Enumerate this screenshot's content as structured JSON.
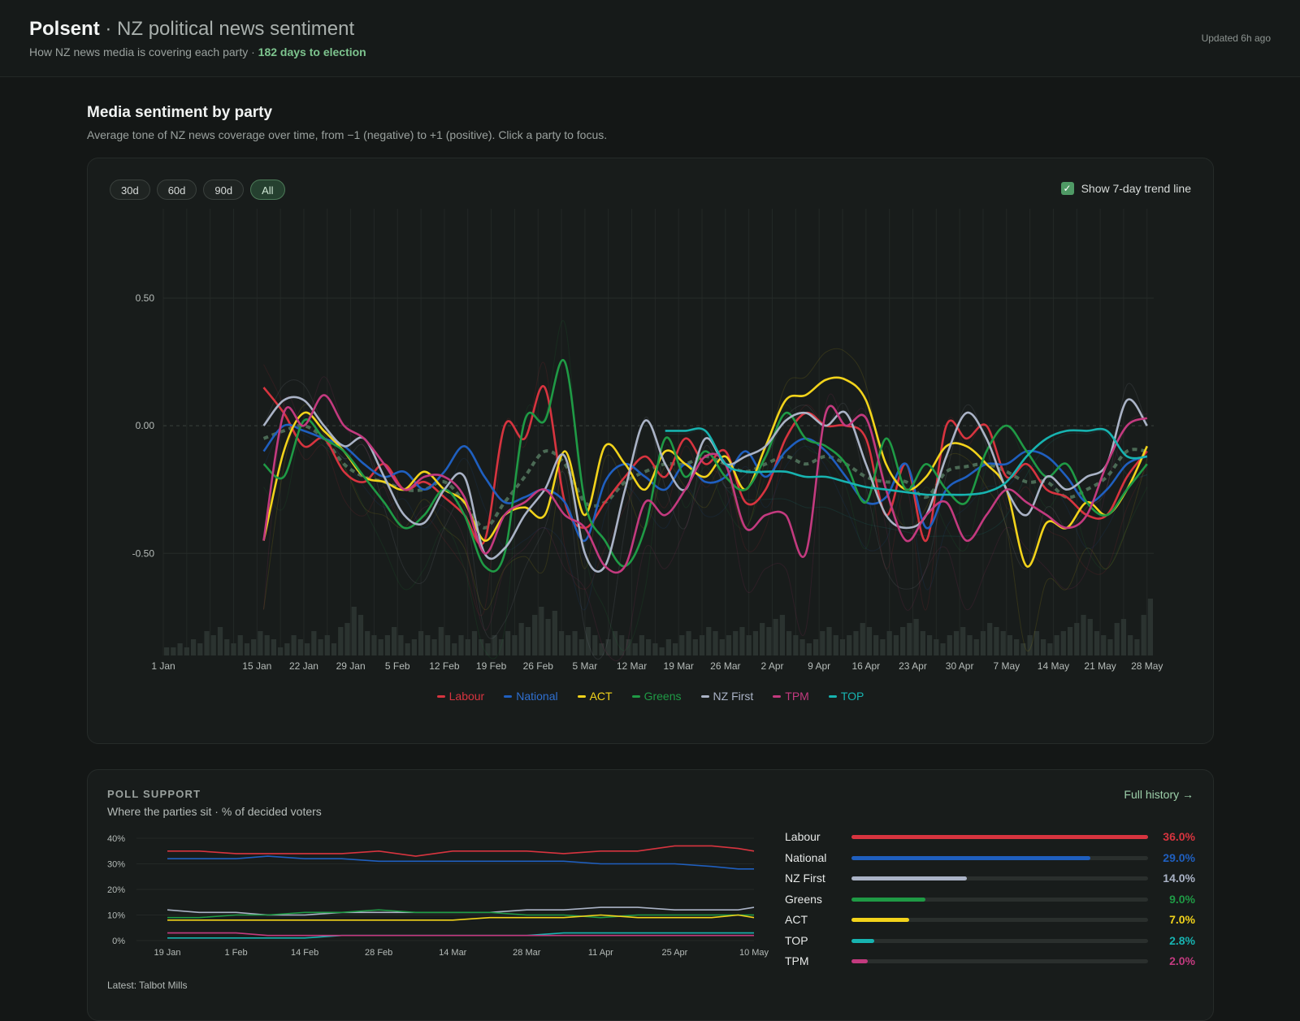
{
  "header": {
    "brand": "Polsent",
    "separator": "·",
    "subtitle": "NZ political news sentiment",
    "tagline": "How NZ news media is covering each party ·",
    "election_countdown": "182 days to election",
    "updated": "Updated 6h ago"
  },
  "sentiment_section": {
    "title": "Media sentiment by party",
    "description": "Average tone of NZ news coverage over time, from −1 (negative) to +1 (positive). Click a party to focus.",
    "range_buttons": [
      {
        "label": "30d",
        "active": false
      },
      {
        "label": "60d",
        "active": false
      },
      {
        "label": "90d",
        "active": false
      },
      {
        "label": "All",
        "active": true
      }
    ],
    "trend_toggle": {
      "label": "Show 7-day trend line",
      "checked": true
    }
  },
  "poll_section": {
    "title": "POLL SUPPORT",
    "subtitle": "Where the parties sit · % of decided voters",
    "link": "Full history →",
    "latest": "Latest: Talbot Mills",
    "support": [
      {
        "party": "Labour",
        "value": 36.0,
        "label": "36.0%",
        "color": "#d7343f"
      },
      {
        "party": "National",
        "value": 29.0,
        "label": "29.0%",
        "color": "#1f5fbf"
      },
      {
        "party": "NZ First",
        "value": 14.0,
        "label": "14.0%",
        "color": "#aab3c6"
      },
      {
        "party": "Greens",
        "value": 9.0,
        "label": "9.0%",
        "color": "#1f9a45"
      },
      {
        "party": "ACT",
        "value": 7.0,
        "label": "7.0%",
        "color": "#f2d31b"
      },
      {
        "party": "TOP",
        "value": 2.8,
        "label": "2.8%",
        "color": "#17b3b0"
      },
      {
        "party": "TPM",
        "value": 2.0,
        "label": "2.0%",
        "color": "#c33a7f"
      }
    ]
  },
  "chart_data": [
    {
      "type": "line",
      "title": "",
      "xlabel": "",
      "ylabel": "",
      "ylim": [
        -0.9,
        0.85
      ],
      "yticks": [
        0.5,
        0.0,
        -0.5
      ],
      "ytick_labels": [
        "0.50",
        "0.00",
        "-0.50"
      ],
      "x_ticks": [
        "1 Jan",
        "15 Jan",
        "22 Jan",
        "29 Jan",
        "5 Feb",
        "12 Feb",
        "19 Feb",
        "26 Feb",
        "5 Mar",
        "12 Mar",
        "19 Mar",
        "26 Mar",
        "2 Apr",
        "9 Apr",
        "16 Apr",
        "23 Apr",
        "30 Apr",
        "7 May",
        "14 May",
        "21 May",
        "28 May"
      ],
      "x_tick_days": [
        0,
        14,
        21,
        28,
        35,
        42,
        49,
        56,
        63,
        70,
        77,
        84,
        91,
        98,
        105,
        112,
        119,
        126,
        133,
        140,
        147
      ],
      "x": [
        15,
        18,
        21,
        24,
        27,
        30,
        33,
        36,
        39,
        42,
        45,
        48,
        51,
        54,
        57,
        60,
        63,
        66,
        69,
        72,
        75,
        78,
        81,
        84,
        87,
        90,
        93,
        96,
        99,
        102,
        105,
        108,
        111,
        114,
        117,
        120,
        123,
        126,
        129,
        132,
        135,
        138,
        141,
        144,
        147
      ],
      "grid": true,
      "legend": "bottom",
      "series": [
        {
          "name": "Labour",
          "color": "#d7343f",
          "values": [
            0.15,
            0.05,
            -0.08,
            -0.05,
            -0.18,
            -0.22,
            -0.15,
            -0.25,
            -0.22,
            -0.28,
            -0.35,
            -0.45,
            0.0,
            -0.05,
            0.15,
            -0.3,
            -0.4,
            -0.3,
            -0.2,
            -0.12,
            -0.2,
            -0.05,
            -0.15,
            -0.1,
            -0.3,
            -0.25,
            -0.05,
            0.05,
            0.0,
            0.0,
            -0.05,
            -0.35,
            -0.15,
            -0.45,
            0.0,
            -0.05,
            0.0,
            -0.2,
            -0.15,
            -0.25,
            -0.28,
            -0.35,
            -0.35,
            -0.2,
            -0.1
          ]
        },
        {
          "name": "National",
          "color": "#1f5fbf",
          "values": [
            -0.1,
            0.0,
            -0.02,
            -0.05,
            -0.08,
            -0.15,
            -0.2,
            -0.18,
            -0.25,
            -0.18,
            -0.08,
            -0.2,
            -0.3,
            -0.28,
            -0.25,
            -0.3,
            -0.45,
            -0.22,
            -0.15,
            -0.2,
            -0.25,
            -0.15,
            -0.22,
            -0.2,
            -0.1,
            -0.2,
            -0.1,
            -0.05,
            -0.1,
            -0.2,
            -0.3,
            -0.28,
            -0.15,
            -0.4,
            -0.25,
            -0.2,
            -0.15,
            -0.15,
            -0.1,
            -0.12,
            -0.2,
            -0.3,
            -0.25,
            -0.15,
            -0.12
          ]
        },
        {
          "name": "ACT",
          "color": "#f2d31b",
          "values": [
            -0.45,
            -0.1,
            0.05,
            -0.02,
            -0.1,
            -0.2,
            -0.22,
            -0.25,
            -0.18,
            -0.25,
            -0.3,
            -0.45,
            -0.35,
            -0.32,
            -0.35,
            -0.1,
            -0.35,
            -0.08,
            -0.15,
            -0.25,
            -0.1,
            -0.15,
            -0.2,
            -0.12,
            -0.25,
            -0.08,
            0.1,
            0.12,
            0.18,
            0.18,
            0.1,
            -0.15,
            -0.25,
            -0.2,
            -0.08,
            -0.08,
            -0.15,
            -0.25,
            -0.55,
            -0.38,
            -0.4,
            -0.3,
            -0.35,
            -0.25,
            -0.08
          ]
        },
        {
          "name": "Greens",
          "color": "#1f9a45",
          "values": [
            -0.15,
            -0.2,
            0.02,
            -0.05,
            -0.1,
            -0.2,
            -0.3,
            -0.4,
            -0.35,
            -0.25,
            -0.35,
            -0.55,
            -0.5,
            0.02,
            0.02,
            0.25,
            -0.3,
            -0.45,
            -0.55,
            -0.4,
            -0.05,
            -0.2,
            -0.1,
            -0.2,
            -0.25,
            -0.12,
            0.05,
            -0.05,
            -0.08,
            -0.15,
            -0.3,
            -0.05,
            -0.25,
            -0.15,
            -0.25,
            -0.3,
            -0.1,
            0.0,
            -0.1,
            -0.2,
            -0.15,
            -0.3,
            -0.35,
            -0.25,
            -0.15
          ]
        },
        {
          "name": "NZ First",
          "color": "#aab3c6",
          "values": [
            0.0,
            0.1,
            0.1,
            0.0,
            -0.08,
            -0.05,
            -0.2,
            -0.35,
            -0.38,
            -0.25,
            -0.2,
            -0.5,
            -0.48,
            -0.35,
            -0.25,
            -0.12,
            -0.5,
            -0.55,
            -0.25,
            0.02,
            -0.15,
            -0.25,
            -0.05,
            -0.15,
            -0.12,
            -0.08,
            0.02,
            0.05,
            0.0,
            0.05,
            -0.15,
            -0.35,
            -0.4,
            -0.35,
            -0.12,
            0.05,
            -0.05,
            -0.25,
            -0.35,
            -0.2,
            -0.25,
            -0.2,
            -0.15,
            0.1,
            0.0
          ]
        },
        {
          "name": "TPM",
          "color": "#c33a7f",
          "values": [
            -0.45,
            0.05,
            0.0,
            0.12,
            0.0,
            -0.05,
            -0.15,
            -0.25,
            -0.2,
            -0.2,
            -0.28,
            -0.5,
            -0.35,
            -0.3,
            -0.25,
            -0.35,
            -0.4,
            -0.55,
            -0.55,
            -0.3,
            -0.35,
            -0.25,
            -0.12,
            -0.15,
            -0.4,
            -0.35,
            -0.35,
            -0.5,
            0.05,
            0.0,
            0.03,
            -0.25,
            -0.45,
            -0.35,
            -0.3,
            -0.45,
            -0.35,
            -0.25,
            -0.3,
            -0.35,
            -0.4,
            -0.35,
            -0.15,
            0.0,
            0.03
          ]
        },
        {
          "name": "TOP",
          "color": "#17b3b0",
          "values": [
            null,
            null,
            null,
            null,
            null,
            null,
            null,
            null,
            null,
            null,
            null,
            null,
            null,
            null,
            null,
            null,
            null,
            null,
            null,
            null,
            -0.02,
            -0.02,
            -0.02,
            -0.15,
            -0.18,
            -0.18,
            -0.18,
            -0.2,
            -0.2,
            -0.22,
            -0.24,
            -0.25,
            -0.26,
            -0.27,
            -0.27,
            -0.27,
            -0.26,
            -0.22,
            -0.12,
            -0.05,
            -0.02,
            -0.02,
            -0.02,
            -0.12,
            -0.12
          ]
        }
      ],
      "trend_series": {
        "values": [
          -0.05,
          -0.02,
          0.0,
          -0.05,
          -0.15,
          -0.2,
          -0.22,
          -0.25,
          -0.25,
          -0.22,
          -0.3,
          -0.4,
          -0.3,
          -0.2,
          -0.1,
          -0.15,
          -0.3,
          -0.3,
          -0.22,
          -0.18,
          -0.15,
          -0.15,
          -0.12,
          -0.15,
          -0.18,
          -0.15,
          -0.12,
          -0.15,
          -0.12,
          -0.15,
          -0.2,
          -0.22,
          -0.22,
          -0.28,
          -0.18,
          -0.16,
          -0.15,
          -0.18,
          -0.22,
          -0.22,
          -0.28,
          -0.25,
          -0.2,
          -0.1,
          -0.1
        ]
      },
      "volume": {
        "values": [
          2,
          2,
          3,
          2,
          4,
          3,
          6,
          5,
          7,
          4,
          3,
          5,
          3,
          4,
          6,
          5,
          4,
          2,
          3,
          5,
          4,
          3,
          6,
          4,
          5,
          3,
          7,
          8,
          12,
          10,
          6,
          5,
          4,
          5,
          7,
          5,
          3,
          4,
          6,
          5,
          4,
          7,
          5,
          3,
          5,
          4,
          6,
          4,
          3,
          5,
          4,
          6,
          5,
          8,
          7,
          10,
          12,
          9,
          11,
          6,
          5,
          6,
          4,
          7,
          5,
          3,
          4,
          6,
          5,
          4,
          3,
          5,
          4,
          3,
          2,
          4,
          3,
          5,
          6,
          4,
          5,
          7,
          6,
          4,
          5,
          6,
          7,
          5,
          6,
          8,
          7,
          9,
          10,
          6,
          5,
          4,
          3,
          4,
          6,
          7,
          5,
          4,
          5,
          6,
          8,
          7,
          5,
          4,
          6,
          5,
          7,
          8,
          9,
          6,
          5,
          4,
          3,
          5,
          6,
          7,
          5,
          4,
          6,
          8,
          7,
          6,
          5,
          4,
          3,
          5,
          6,
          4,
          3,
          5,
          6,
          7,
          8,
          10,
          9,
          6,
          5,
          4,
          8,
          9,
          5,
          4,
          10,
          14
        ]
      }
    },
    {
      "type": "line",
      "title": "",
      "xlabel": "",
      "ylabel": "",
      "ylim": [
        0,
        40
      ],
      "yticks": [
        40,
        30,
        20,
        10,
        0
      ],
      "ytick_labels": [
        "40%",
        "30%",
        "20%",
        "10%",
        "0%"
      ],
      "x_ticks": [
        "19 Jan",
        "1 Feb",
        "14 Feb",
        "28 Feb",
        "14 Mar",
        "28 Mar",
        "11 Apr",
        "25 Apr",
        "10 May"
      ],
      "x_tick_days": [
        0,
        13,
        26,
        40,
        54,
        68,
        82,
        96,
        111
      ],
      "x": [
        0,
        6,
        13,
        19,
        26,
        33,
        40,
        47,
        54,
        61,
        68,
        75,
        82,
        89,
        96,
        103,
        108,
        111
      ],
      "grid": true,
      "series": [
        {
          "name": "Labour",
          "color": "#d7343f",
          "values": [
            35,
            35,
            34,
            34,
            34,
            34,
            35,
            33,
            35,
            35,
            35,
            34,
            35,
            35,
            37,
            37,
            36,
            35
          ]
        },
        {
          "name": "National",
          "color": "#1f5fbf",
          "values": [
            32,
            32,
            32,
            33,
            32,
            32,
            31,
            31,
            31,
            31,
            31,
            31,
            30,
            30,
            30,
            29,
            28,
            28
          ]
        },
        {
          "name": "NZ First",
          "color": "#aab3c6",
          "values": [
            12,
            11,
            11,
            10,
            10,
            11,
            11,
            11,
            11,
            11,
            12,
            12,
            13,
            13,
            12,
            12,
            12,
            13
          ]
        },
        {
          "name": "Greens",
          "color": "#1f9a45",
          "values": [
            9,
            9,
            10,
            10,
            11,
            11,
            12,
            11,
            11,
            11,
            10,
            10,
            9,
            10,
            10,
            10,
            10,
            10
          ]
        },
        {
          "name": "ACT",
          "color": "#f2d31b",
          "values": [
            8,
            8,
            8,
            8,
            8,
            8,
            8,
            8,
            8,
            9,
            9,
            9,
            10,
            9,
            9,
            9,
            10,
            9
          ]
        },
        {
          "name": "TOP",
          "color": "#17b3b0",
          "values": [
            1,
            1,
            1,
            1,
            1,
            2,
            2,
            2,
            2,
            2,
            2,
            3,
            3,
            3,
            3,
            3,
            3,
            3
          ]
        },
        {
          "name": "TPM",
          "color": "#c33a7f",
          "values": [
            3,
            3,
            3,
            2,
            2,
            2,
            2,
            2,
            2,
            2,
            2,
            2,
            2,
            2,
            2,
            2,
            2,
            2
          ]
        }
      ]
    }
  ]
}
